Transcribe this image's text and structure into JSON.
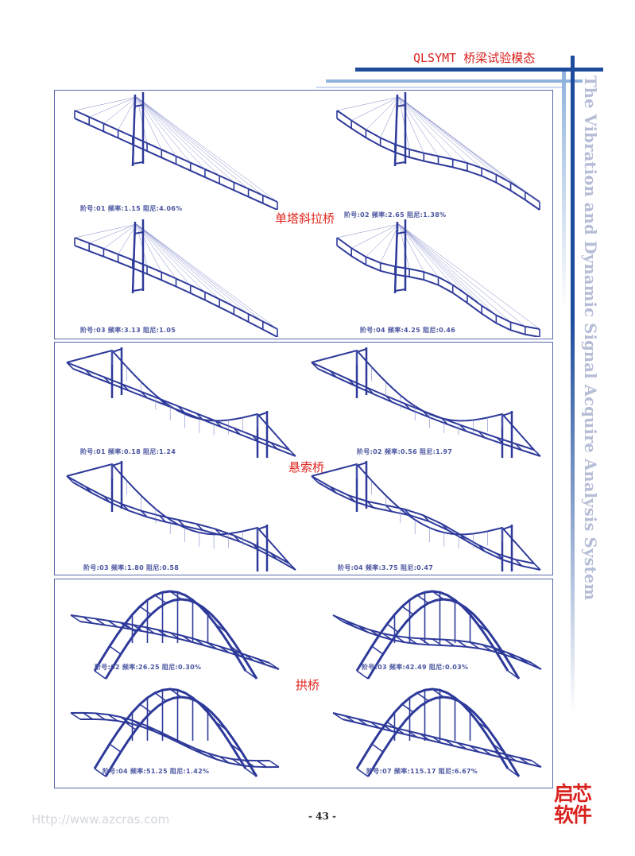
{
  "header": {
    "title": "QLSYMT 桥梁试验模态",
    "color_dark": "#1d4c9c",
    "color_light": "#8fb3dc"
  },
  "side_text": "The Vibration and Dynamic Signal Acquire Analysis System",
  "sections": [
    {
      "title": "单塔斜拉桥",
      "type": "cable-stayed",
      "modes": [
        {
          "caption": "阶号:01  频率:1.15  阻尼:4.06%"
        },
        {
          "caption": "阶号:02  频率:2.65  阻尼:1.38%"
        },
        {
          "caption": "阶号:03  频率:3.13  阻尼:1.05"
        },
        {
          "caption": "阶号:04  频率:4.25  阻尼:0.46"
        }
      ]
    },
    {
      "title": "悬索桥",
      "type": "suspension",
      "modes": [
        {
          "caption": "阶号:01  频率:0.18  阻尼:1.24"
        },
        {
          "caption": "阶号:02  频率:0.56  阻尼:1.97"
        },
        {
          "caption": "阶号:03  频率:1.80  阻尼:0.58"
        },
        {
          "caption": "阶号:04  频率:3.75  阻尼:0.47"
        }
      ]
    },
    {
      "title": "拱桥",
      "type": "arch",
      "modes": [
        {
          "caption": "阶号:02  频率:26.25  阻尼:0.30%"
        },
        {
          "caption": "阶号:03  频率:42.49  阻尼:0.03%"
        },
        {
          "caption": "阶号:04  频率:51.25  阻尼:1.42%"
        },
        {
          "caption": "阶号:07  频率:115.17  阻尼:6.67%"
        }
      ]
    }
  ],
  "footer": {
    "url": "Http://www.azcras.com",
    "page": "- 43 -"
  },
  "logo": "启芯软件",
  "colors": {
    "structure": "#2e3a9a",
    "cable": "#7f88c8",
    "section_title": "#e0241c"
  }
}
